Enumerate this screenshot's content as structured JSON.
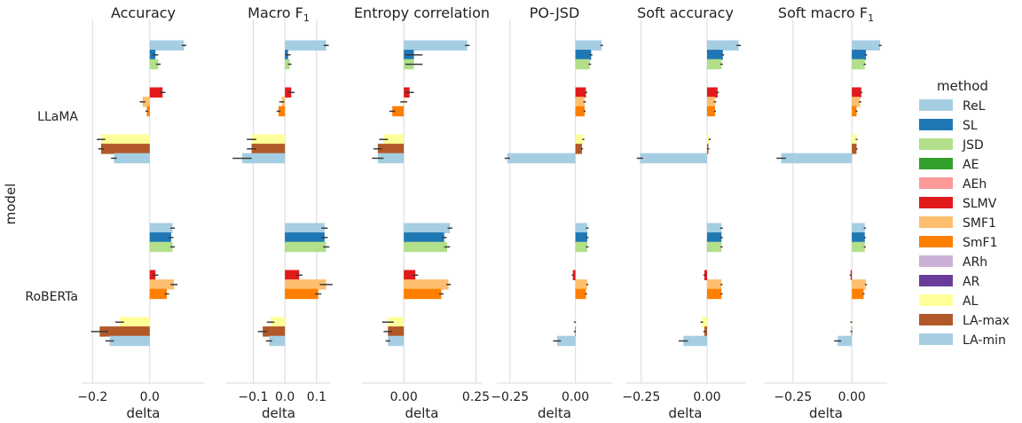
{
  "chart_data": {
    "type": "bar",
    "orientation": "horizontal",
    "ylabel": "model",
    "xlabel": "delta",
    "models": [
      "LLaMA",
      "RoBERTa"
    ],
    "legend": {
      "title": "method",
      "placement": "right",
      "entries": [
        {
          "name": "ReL",
          "color": "#a6cee3"
        },
        {
          "name": "SL",
          "color": "#1f78b4"
        },
        {
          "name": "JSD",
          "color": "#b2df8a"
        },
        {
          "name": "AE",
          "color": "#33a02c"
        },
        {
          "name": "AEh",
          "color": "#fb9a99"
        },
        {
          "name": "SLMV",
          "color": "#e31a1c"
        },
        {
          "name": "SMF1",
          "color": "#fdbf6f"
        },
        {
          "name": "SmF1",
          "color": "#ff7f00"
        },
        {
          "name": "ARh",
          "color": "#cab2d6"
        },
        {
          "name": "AR",
          "color": "#6a3d9a"
        },
        {
          "name": "AL",
          "color": "#ffff99"
        },
        {
          "name": "LA-max",
          "color": "#b15928"
        },
        {
          "name": "LA-min",
          "color": "#a6cee3"
        }
      ]
    },
    "panels": [
      {
        "title": "Accuracy",
        "xlim": [
          -0.235,
          0.19
        ],
        "xticks": [
          {
            "v": -0.2,
            "label": "−0.2"
          },
          {
            "v": 0.0,
            "label": "0.0"
          }
        ],
        "values": {
          "LLaMA": [
            0.12,
            0.02,
            0.03,
            null,
            null,
            0.045,
            -0.025,
            -0.01,
            null,
            null,
            -0.17,
            -0.17,
            -0.125
          ],
          "RoBERTa": [
            0.08,
            0.075,
            0.08,
            null,
            null,
            0.02,
            0.085,
            0.06,
            null,
            null,
            -0.105,
            -0.175,
            -0.14
          ]
        },
        "errors": {
          "LLaMA": [
            0.008,
            0.01,
            0.008,
            null,
            null,
            0.01,
            0.01,
            0.005,
            null,
            null,
            0.015,
            0.01,
            0.01
          ],
          "RoBERTa": [
            0.008,
            0.008,
            0.008,
            null,
            null,
            0.01,
            0.012,
            0.008,
            null,
            null,
            0.015,
            0.03,
            0.015
          ]
        }
      },
      {
        "title": "Macro F",
        "title_subscript": "1",
        "xlim": [
          -0.185,
          0.145
        ],
        "xticks": [
          {
            "v": -0.1,
            "label": "−0.1"
          },
          {
            "v": 0.0,
            "label": "0.0"
          },
          {
            "v": 0.1,
            "label": "0.1"
          }
        ],
        "values": {
          "LLaMA": [
            0.13,
            0.01,
            0.015,
            null,
            null,
            0.02,
            -0.01,
            -0.02,
            null,
            null,
            -0.105,
            -0.105,
            -0.135
          ],
          "RoBERTa": [
            0.125,
            0.125,
            0.13,
            null,
            null,
            0.045,
            0.13,
            0.105,
            null,
            null,
            -0.045,
            -0.07,
            -0.05
          ]
        },
        "errors": {
          "LLaMA": [
            0.008,
            0.008,
            0.006,
            null,
            null,
            0.01,
            0.008,
            0.006,
            null,
            null,
            0.015,
            0.015,
            0.03
          ],
          "RoBERTa": [
            0.01,
            0.01,
            0.01,
            null,
            null,
            0.01,
            0.02,
            0.01,
            null,
            null,
            0.012,
            0.015,
            0.01
          ]
        }
      },
      {
        "title": "Entropy correlation",
        "xlim": [
          -0.145,
          0.27
        ],
        "xticks": [
          {
            "v": 0.0,
            "label": "0.00"
          },
          {
            "v": 0.25,
            "label": "0.25"
          }
        ],
        "values": {
          "LLaMA": [
            0.22,
            0.035,
            0.035,
            null,
            null,
            0.02,
            0.0,
            -0.04,
            null,
            null,
            -0.07,
            -0.09,
            -0.09
          ],
          "RoBERTa": [
            0.16,
            0.14,
            0.15,
            null,
            null,
            0.04,
            0.155,
            0.13,
            null,
            null,
            -0.055,
            -0.055,
            -0.055
          ]
        },
        "errors": {
          "LLaMA": [
            0.008,
            0.03,
            0.03,
            null,
            null,
            0.015,
            0.012,
            0.01,
            null,
            null,
            0.015,
            0.015,
            0.02
          ],
          "RoBERTa": [
            0.008,
            0.008,
            0.01,
            null,
            null,
            0.01,
            0.008,
            0.008,
            null,
            null,
            0.02,
            0.015,
            0.008
          ]
        }
      },
      {
        "title": "PO-JSD",
        "xlim": [
          -0.3,
          0.14
        ],
        "xticks": [
          {
            "v": -0.25,
            "label": "−0.25"
          },
          {
            "v": 0.0,
            "label": "0.00"
          }
        ],
        "values": {
          "LLaMA": [
            0.1,
            0.06,
            0.055,
            null,
            null,
            0.04,
            0.035,
            0.035,
            null,
            null,
            0.03,
            0.025,
            -0.26
          ],
          "RoBERTa": [
            0.045,
            0.045,
            0.045,
            null,
            null,
            -0.01,
            0.045,
            0.04,
            null,
            null,
            -0.002,
            -0.002,
            -0.07
          ]
        },
        "errors": {
          "LLaMA": [
            0.005,
            0.005,
            0.005,
            null,
            null,
            0.005,
            0.005,
            0.004,
            null,
            null,
            0.004,
            0.004,
            0.01
          ],
          "RoBERTa": [
            0.005,
            0.005,
            0.005,
            null,
            null,
            0.004,
            0.004,
            0.004,
            null,
            null,
            0.004,
            0.004,
            0.015
          ]
        }
      },
      {
        "title": "Soft accuracy",
        "xlim": [
          -0.31,
          0.145
        ],
        "xticks": [
          {
            "v": -0.25,
            "label": "−0.25"
          },
          {
            "v": 0.0,
            "label": "0.00"
          }
        ],
        "values": {
          "LLaMA": [
            0.12,
            0.06,
            0.055,
            null,
            null,
            0.04,
            0.03,
            0.03,
            null,
            null,
            0.01,
            0.005,
            -0.255
          ],
          "RoBERTa": [
            0.055,
            0.055,
            0.055,
            null,
            null,
            -0.01,
            0.055,
            0.055,
            null,
            null,
            -0.02,
            -0.01,
            -0.09
          ]
        },
        "errors": {
          "LLaMA": [
            0.008,
            0.005,
            0.005,
            null,
            null,
            0.005,
            0.005,
            0.004,
            null,
            null,
            0.004,
            0.004,
            0.012
          ],
          "RoBERTa": [
            0.005,
            0.005,
            0.004,
            null,
            null,
            0.004,
            0.004,
            0.004,
            null,
            null,
            0.005,
            0.004,
            0.018
          ]
        }
      },
      {
        "title": "Soft macro F",
        "title_subscript": "1",
        "xlim": [
          -0.37,
          0.15
        ],
        "xticks": [
          {
            "v": -0.25,
            "label": "−0.25"
          },
          {
            "v": 0.0,
            "label": "0.00"
          }
        ],
        "values": {
          "LLaMA": [
            0.12,
            0.06,
            0.055,
            null,
            null,
            0.04,
            0.035,
            0.02,
            null,
            null,
            0.02,
            0.02,
            -0.3
          ],
          "RoBERTa": [
            0.055,
            0.055,
            0.055,
            null,
            null,
            -0.005,
            0.06,
            0.05,
            null,
            null,
            -0.002,
            -0.002,
            -0.06
          ]
        },
        "errors": {
          "LLaMA": [
            0.006,
            0.005,
            0.005,
            null,
            null,
            0.005,
            0.005,
            0.004,
            null,
            null,
            0.004,
            0.004,
            0.02
          ],
          "RoBERTa": [
            0.004,
            0.004,
            0.004,
            null,
            null,
            0.004,
            0.004,
            0.004,
            null,
            null,
            0.004,
            0.004,
            0.015
          ]
        }
      }
    ]
  }
}
